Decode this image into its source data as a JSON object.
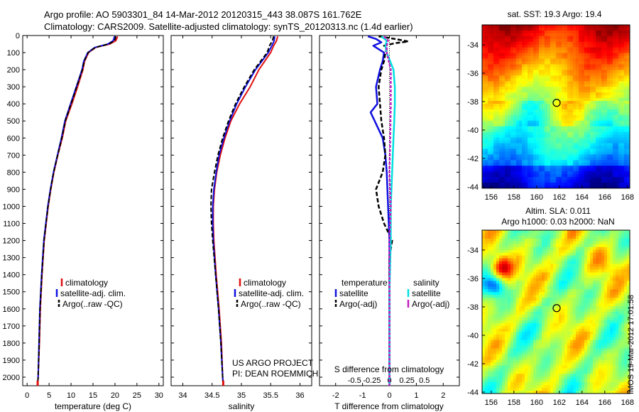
{
  "header": {
    "line1": "Argo profile: AO 5903301_84 14-Mar-2012 20120315_443 38.087S 161.762E",
    "line2": "Climatology: CARS2009. Satellite-adjusted climatology: synTS_20120313.nc (1.4d earlier)"
  },
  "colors": {
    "climatology": "#e01010",
    "satellite": "#1010e0",
    "argo": "#000000",
    "sal_satellite": "#00e0e0",
    "sal_argo": "#c020c0"
  },
  "chart_data": [
    {
      "type": "line",
      "id": "temperature",
      "xlabel": "temperature (deg C)",
      "xlim": [
        -1,
        31
      ],
      "xticks": [
        "0",
        "5",
        "10",
        "15",
        "20",
        "25",
        "30"
      ],
      "xtick_values": [
        0,
        5,
        10,
        15,
        20,
        25,
        30
      ],
      "ylim": [
        2050,
        0
      ],
      "yticks": [
        "0",
        "100",
        "200",
        "300",
        "400",
        "500",
        "600",
        "700",
        "800",
        "900",
        "1000",
        "1100",
        "1200",
        "1300",
        "1400",
        "1500",
        "1600",
        "1700",
        "1800",
        "1900",
        "2000"
      ],
      "ytick_values": [
        0,
        100,
        200,
        300,
        400,
        500,
        600,
        700,
        800,
        900,
        1000,
        1100,
        1200,
        1300,
        1400,
        1500,
        1600,
        1700,
        1800,
        1900,
        2000
      ],
      "legend": [
        "climatology",
        "satellite-adj. clim.",
        "Argo(..raw -QC)"
      ],
      "series": [
        {
          "name": "climatology",
          "depth": [
            5,
            30,
            50,
            70,
            100,
            150,
            200,
            300,
            400,
            500,
            600,
            700,
            800,
            900,
            1000,
            1200,
            1400,
            1600,
            1800,
            2000,
            2050
          ],
          "values": [
            20.6,
            20.2,
            18.8,
            15.6,
            14.0,
            13.1,
            12.7,
            11.5,
            10.2,
            8.8,
            8.0,
            7.0,
            6.1,
            5.4,
            4.8,
            3.9,
            3.4,
            3.0,
            2.8,
            2.5,
            2.4
          ]
        },
        {
          "name": "satellite-adj. clim.",
          "depth": [
            5,
            30,
            50,
            70,
            100,
            150,
            200,
            300,
            400,
            500,
            600,
            700,
            800,
            900,
            1000,
            1200,
            1400,
            1600,
            1800,
            2000,
            2050
          ],
          "values": [
            19.9,
            19.6,
            18.4,
            15.4,
            13.8,
            12.9,
            12.5,
            11.2,
            9.9,
            8.6,
            7.8,
            6.9,
            6.0,
            5.3,
            4.7,
            3.8,
            3.3,
            2.9,
            2.7,
            2.5,
            2.4
          ]
        },
        {
          "name": "Argo(..raw -QC)",
          "depth": [
            5,
            30,
            50,
            70,
            100,
            150,
            200,
            300,
            400,
            500,
            600,
            700,
            800,
            900,
            1000,
            1200,
            1400,
            1600,
            1800,
            2000,
            2050
          ],
          "values": [
            20.2,
            19.9,
            18.6,
            15.5,
            13.9,
            13.0,
            12.6,
            11.3,
            10.0,
            8.7,
            7.9,
            6.95,
            6.05,
            5.35,
            4.75,
            3.85,
            3.35,
            2.95,
            2.75,
            2.5,
            2.4
          ]
        }
      ]
    },
    {
      "type": "line",
      "id": "salinity",
      "xlabel": "salinity",
      "xlim": [
        33.8,
        36.2
      ],
      "xticks": [
        "34",
        "34.5",
        "35",
        "35.5",
        "36"
      ],
      "xtick_values": [
        34,
        34.5,
        35,
        35.5,
        36
      ],
      "ylim": [
        2050,
        0
      ],
      "legend": [
        "climatology",
        "satellite-adj. clim.",
        "Argo(..raw -QC)"
      ],
      "annotation": [
        "US ARGO PROJECT",
        "PI: DEAN ROEMMICH"
      ],
      "series": [
        {
          "name": "climatology",
          "depth": [
            5,
            30,
            60,
            100,
            200,
            300,
            400,
            500,
            600,
            700,
            800,
            900,
            1000,
            1100,
            1200,
            1400,
            1600,
            1800,
            2000,
            2050
          ],
          "values": [
            35.62,
            35.6,
            35.55,
            35.5,
            35.3,
            35.15,
            34.97,
            34.82,
            34.72,
            34.64,
            34.58,
            34.54,
            34.52,
            34.52,
            34.53,
            34.57,
            34.62,
            34.66,
            34.68,
            34.69
          ]
        },
        {
          "name": "satellite-adj. clim.",
          "depth": [
            5,
            30,
            60,
            100,
            200,
            300,
            400,
            500,
            600,
            700,
            800,
            900,
            1000,
            1100,
            1200,
            1400,
            1600,
            1800,
            2000,
            2050
          ],
          "values": [
            35.57,
            35.56,
            35.52,
            35.46,
            35.24,
            35.07,
            34.92,
            34.8,
            34.7,
            34.62,
            34.57,
            34.53,
            34.51,
            34.51,
            34.52,
            34.56,
            34.61,
            34.65,
            34.68,
            34.69
          ]
        },
        {
          "name": "Argo(..raw -QC)",
          "depth": [
            5,
            30,
            60,
            100,
            200,
            300,
            400,
            500,
            600,
            700,
            800,
            900,
            1000,
            1100,
            1200,
            1400,
            1600,
            1800,
            2000,
            2050
          ],
          "values": [
            35.55,
            35.53,
            35.48,
            35.44,
            35.22,
            35.05,
            34.9,
            34.78,
            34.68,
            34.6,
            34.54,
            34.49,
            34.48,
            34.49,
            34.51,
            34.56,
            34.61,
            34.65,
            34.68,
            34.69
          ]
        }
      ]
    },
    {
      "type": "line",
      "id": "difference",
      "xlabel": "T difference from climatology",
      "xlabel_top": "S difference from climatology",
      "xlim": [
        -2.6,
        2.6
      ],
      "xticks": [
        "-2",
        "-1",
        "0",
        "1",
        "2"
      ],
      "xtick_values": [
        -2,
        -1,
        0,
        1,
        2
      ],
      "sticks": [
        "-0.5",
        "-0.25",
        "0",
        "0.25",
        "0.5"
      ],
      "stick_values": [
        -1.3,
        -0.65,
        0,
        0.65,
        1.3
      ],
      "ylim": [
        2050,
        0
      ],
      "legend_titles": [
        "temperature",
        "salinity"
      ],
      "legend_temperature": [
        "satellite",
        "Argo(-adj)"
      ],
      "legend_salinity": [
        "satellite",
        "Argo(-adj)"
      ],
      "series": [
        {
          "name": "temperature satellite",
          "depth": [
            5,
            20,
            40,
            60,
            80,
            100,
            150,
            200,
            300,
            400,
            450,
            500,
            600,
            700,
            800,
            1000,
            1200,
            1500,
            2050
          ],
          "values": [
            -0.8,
            -0.5,
            -0.3,
            -0.6,
            -0.4,
            -0.2,
            -0.25,
            -0.35,
            -0.5,
            -0.45,
            -0.7,
            -0.55,
            -0.25,
            -0.15,
            -0.1,
            -0.05,
            0,
            0,
            0
          ]
        },
        {
          "name": "temperature Argo(-adj)",
          "depth": [
            5,
            20,
            35,
            45,
            60,
            80,
            100,
            150,
            200,
            300,
            400,
            500,
            600,
            700,
            800,
            900,
            1000,
            1100,
            1200,
            1300,
            1500,
            2050
          ],
          "values": [
            -0.4,
            0.2,
            0.7,
            0.2,
            -0.2,
            -0.1,
            -0.15,
            -0.2,
            -0.3,
            -0.4,
            -0.35,
            -0.3,
            -0.2,
            -0.15,
            -0.25,
            -0.5,
            -0.4,
            -0.2,
            0.1,
            0,
            0,
            0
          ]
        },
        {
          "name": "salinity satellite",
          "depth": [
            5,
            30,
            60,
            100,
            200,
            300,
            400,
            500,
            600,
            800,
            1000,
            1200,
            1500,
            2050
          ],
          "values": [
            -0.3,
            -0.1,
            -0.15,
            -0.1,
            0.15,
            0.2,
            0.2,
            0.18,
            0.15,
            0.1,
            0.05,
            0.05,
            0,
            0
          ]
        },
        {
          "name": "salinity Argo(-adj)",
          "depth": [
            5,
            30,
            60,
            100,
            200,
            300,
            400,
            600,
            800,
            1000,
            1200,
            1500,
            2050
          ],
          "values": [
            -0.2,
            -0.05,
            -0.1,
            -0.1,
            0.05,
            0.05,
            0.05,
            0.03,
            0,
            0.05,
            0,
            0,
            0
          ]
        }
      ]
    },
    {
      "type": "heatmap",
      "id": "sst_map",
      "title": "sat. SST: 19.3 Argo: 19.4",
      "xticks": [
        "156",
        "158",
        "160",
        "162",
        "164",
        "166",
        "168"
      ],
      "yticks": [
        "-34",
        "-36",
        "-38",
        "-40",
        "-42",
        "-44"
      ],
      "marker": {
        "lon": 161.762,
        "lat": -38.087
      }
    },
    {
      "type": "heatmap",
      "id": "sla_map",
      "title_line1": "Altim. SLA: 0.011",
      "title_line2": "Argo h1000: 0.03 h2000: NaN",
      "xticks": [
        "156",
        "158",
        "160",
        "162",
        "164",
        "166",
        "168"
      ],
      "yticks": [
        "-34",
        "-36",
        "-38",
        "-40",
        "-42",
        "-44"
      ],
      "marker": {
        "lon": 161.762,
        "lat": -38.087
      }
    }
  ],
  "footer_stamp": "IMOS 19-Mar-2012 17:01:58"
}
